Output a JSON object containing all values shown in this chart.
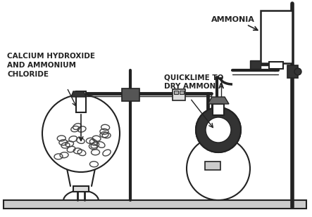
{
  "bg_color": "#ffffff",
  "line_color": "#222222",
  "labels": {
    "calcium": "CALCIUM HYDROXIDE\nAND AMMONIUM\nCHLORIDE",
    "quicklime": "QUICKLIME TO\nDRY AMMONIA",
    "ammonia": "AMMONIA"
  },
  "figsize": [
    4.43,
    3.09
  ],
  "dpi": 100
}
